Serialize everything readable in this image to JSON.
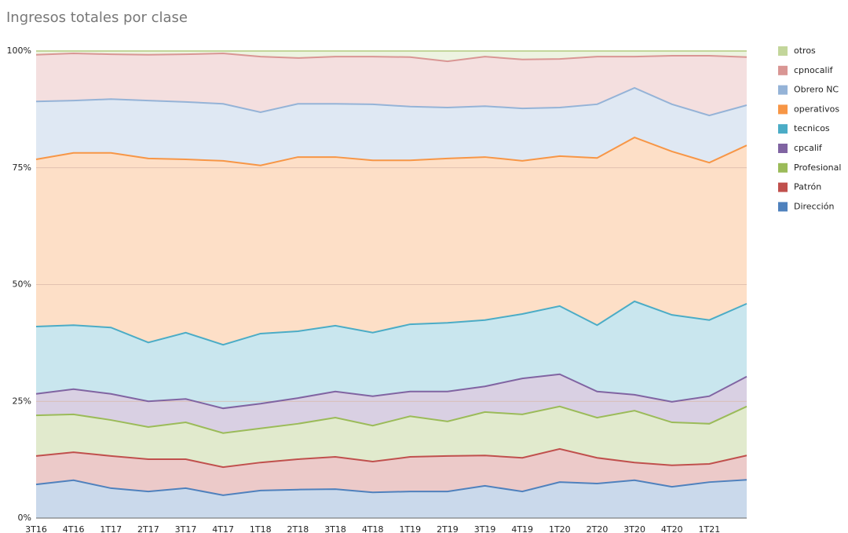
{
  "chart_data": {
    "type": "stacked-area",
    "title": "Ingresos totales por clase",
    "categories": [
      "3T16",
      "4T16",
      "1T17",
      "2T17",
      "3T17",
      "4T17",
      "1T18",
      "2T18",
      "3T18",
      "4T18",
      "1T19",
      "2T19",
      "3T19",
      "4T19",
      "1T20",
      "2T20",
      "3T20",
      "4T20",
      "1T21",
      null
    ],
    "ylim": [
      0,
      100
    ],
    "yticks": [
      {
        "value": 0,
        "label": "0%"
      },
      {
        "value": 25,
        "label": "25%"
      },
      {
        "value": 50,
        "label": "50%"
      },
      {
        "value": 75,
        "label": "75%"
      },
      {
        "value": 100,
        "label": "100%"
      }
    ],
    "grid": true,
    "legend": "right",
    "series": [
      {
        "name": "Dirección",
        "color": "#4f81bd",
        "values": [
          7.2,
          8.1,
          6.4,
          5.7,
          6.4,
          4.9,
          5.9,
          6.1,
          6.2,
          5.5,
          5.7,
          5.7,
          6.9,
          5.7,
          7.7,
          7.4,
          8.1,
          6.7,
          7.7,
          8.2
        ]
      },
      {
        "name": "Patrón",
        "color": "#c0504d",
        "values": [
          6.1,
          6.0,
          6.9,
          6.9,
          6.2,
          6.0,
          6.0,
          6.5,
          6.9,
          6.6,
          7.4,
          7.6,
          6.5,
          7.2,
          7.1,
          5.5,
          3.8,
          4.6,
          3.9,
          5.2
        ]
      },
      {
        "name": "Profesional",
        "color": "#9bbb59",
        "values": [
          8.7,
          8.1,
          7.7,
          6.9,
          7.9,
          7.3,
          7.3,
          7.6,
          8.4,
          7.7,
          8.7,
          7.4,
          9.3,
          9.3,
          9.1,
          8.6,
          11.1,
          9.2,
          8.6,
          10.5
        ]
      },
      {
        "name": "cpcalif",
        "color": "#8064a2",
        "values": [
          4.6,
          5.4,
          5.6,
          5.5,
          5.0,
          5.3,
          5.3,
          5.5,
          5.6,
          6.3,
          5.3,
          6.4,
          5.5,
          7.7,
          6.9,
          5.6,
          3.4,
          4.4,
          5.9,
          6.4
        ]
      },
      {
        "name": "tecnicos",
        "color": "#4bacc6",
        "values": [
          14.4,
          13.7,
          14.2,
          12.6,
          14.2,
          13.6,
          15.0,
          14.3,
          14.1,
          13.6,
          14.4,
          14.7,
          14.2,
          13.8,
          14.6,
          14.2,
          20.0,
          18.6,
          16.3,
          15.6
        ]
      },
      {
        "name": "operativos",
        "color": "#f79646",
        "values": [
          35.8,
          36.9,
          37.4,
          39.4,
          37.1,
          39.4,
          36.0,
          37.3,
          36.1,
          36.9,
          35.1,
          35.2,
          34.9,
          32.8,
          32.1,
          35.8,
          35.1,
          35.0,
          33.7,
          33.9
        ]
      },
      {
        "name": "Obrero NC",
        "color": "#95b3d7",
        "values": [
          12.4,
          11.2,
          11.5,
          12.4,
          12.3,
          12.2,
          11.4,
          11.4,
          11.4,
          12.0,
          11.5,
          10.9,
          10.9,
          11.2,
          10.4,
          11.5,
          10.6,
          10.1,
          10.1,
          8.6
        ]
      },
      {
        "name": "cpnocalif",
        "color": "#d99694",
        "values": [
          10.0,
          10.1,
          9.6,
          9.8,
          10.2,
          10.8,
          11.9,
          9.8,
          10.1,
          10.2,
          10.6,
          9.9,
          10.6,
          10.5,
          10.4,
          10.2,
          6.7,
          10.4,
          12.8,
          10.3
        ]
      },
      {
        "name": "otros",
        "color": "#c3d69b",
        "values": [
          0.8,
          0.5,
          0.7,
          0.8,
          0.7,
          0.5,
          1.2,
          1.5,
          1.2,
          1.2,
          1.3,
          2.2,
          1.2,
          1.8,
          1.7,
          1.2,
          1.2,
          1.0,
          1.0,
          1.3
        ]
      }
    ]
  }
}
